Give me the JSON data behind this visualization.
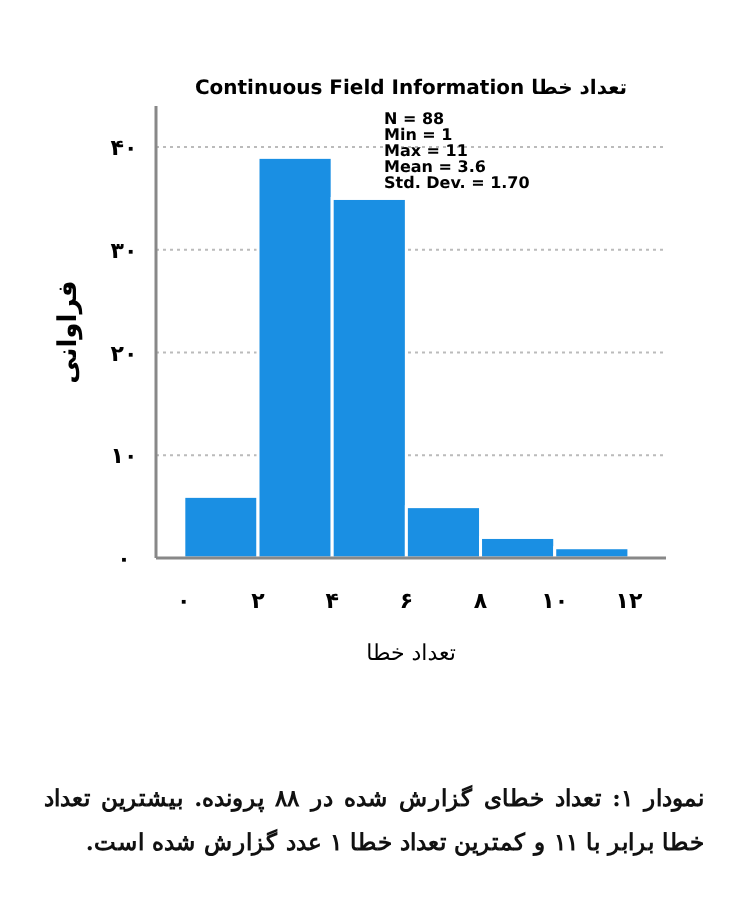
{
  "chart_data": {
    "type": "histogram",
    "title": "Continuous Field Information تعداد خطا",
    "xlabel": "تعداد خطا",
    "ylabel": "فراوانی",
    "bins": [
      0,
      2,
      4,
      6,
      8,
      10,
      12
    ],
    "values": [
      6,
      39,
      35,
      5,
      2,
      1
    ],
    "color": "#1a8fe3",
    "xlim": [
      -0.75,
      13
    ],
    "ylim": [
      0,
      44
    ],
    "xticks": [
      {
        "value": 0,
        "label": "۰"
      },
      {
        "value": 2,
        "label": "۲"
      },
      {
        "value": 4,
        "label": "۴"
      },
      {
        "value": 6,
        "label": "۶"
      },
      {
        "value": 8,
        "label": "۸"
      },
      {
        "value": 10,
        "label": "۱۰"
      },
      {
        "value": 12,
        "label": "۱۲"
      }
    ],
    "yticks": [
      {
        "value": 0,
        "label": "۰"
      },
      {
        "value": 10,
        "label": "۱۰"
      },
      {
        "value": 20,
        "label": "۲۰"
      },
      {
        "value": 30,
        "label": "۳۰"
      },
      {
        "value": 40,
        "label": "۴۰"
      }
    ],
    "grid": "y",
    "annotations": [
      "N = 88",
      "Min = 1",
      "Max = 11",
      "Mean = 3.6",
      "Std. Dev. = 1.70",
      "نمودار ۱: تعداد خطای گزارش شده در ۸۸ پرونده. بیشترین تعداد خطا برابر با ۱۱ و کمترین تعداد خطا ۱ عدد گزارش شده است."
    ]
  }
}
